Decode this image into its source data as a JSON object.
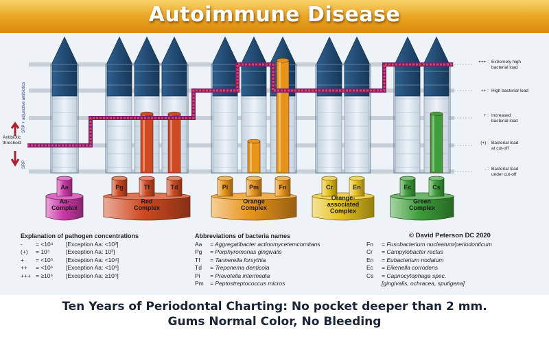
{
  "title": "Autoimmune Disease",
  "side_labels": {
    "antibiotic_threshold": [
      "Antibiotic",
      "threshold"
    ],
    "srp_adjunctive": "SRP + adjunctive antibiotics",
    "srp": "SRP"
  },
  "levels": [
    {
      "symbol": "+++ :",
      "lines": [
        "Extremely high",
        "bacterial load"
      ]
    },
    {
      "symbol": "++ :",
      "lines": [
        "High bacterial load"
      ]
    },
    {
      "symbol": "+ :",
      "lines": [
        "Increased",
        "bacterial load"
      ]
    },
    {
      "symbol": "(+) :",
      "lines": [
        "Bacterial load",
        "at cut-off"
      ]
    },
    {
      "symbol": "- :",
      "lines": [
        "Bacterial load",
        "under cut-off"
      ]
    }
  ],
  "complexes": [
    {
      "name": [
        "Aa-",
        "Complex"
      ],
      "color": "#cc3aa8",
      "bacteria": [
        "Aa"
      ]
    },
    {
      "name": [
        "Red",
        "Complex"
      ],
      "color": "#cf4a22",
      "bacteria": [
        "Pg",
        "Tf",
        "Td"
      ]
    },
    {
      "name": [
        "Orange",
        "Complex"
      ],
      "color": "#e8941a",
      "bacteria": [
        "Pi",
        "Pm",
        "Fn"
      ]
    },
    {
      "name": [
        "Orange-",
        "associated",
        "Complex"
      ],
      "color": "#e6c21c",
      "bacteria": [
        "Cr",
        "En"
      ]
    },
    {
      "name": [
        "Green",
        "Complex"
      ],
      "color": "#3e9e3a",
      "bacteria": [
        "Ec",
        "Cs"
      ]
    }
  ],
  "copyright": "© David Peterson DC 2020",
  "concentrations": {
    "header": "Explanation of pathogen concentrations",
    "rows": [
      [
        "-",
        "= <10⁴",
        "[Exception Aa: <10³]"
      ],
      [
        "(+)",
        "= 10⁴",
        "[Exception Aa: 10³]"
      ],
      [
        "+",
        "= <10⁵",
        "[Exception Aa: <10⁴]"
      ],
      [
        "++",
        "= <10⁶",
        "[Exception Aa: <10⁵]"
      ],
      [
        "+++",
        "= ≥10⁶",
        "[Exception Aa: ≥10⁵]"
      ]
    ]
  },
  "abbreviations": {
    "header": "Abbreviations of bacteria names",
    "left": [
      [
        "Aa",
        "= Aggregatibacter actinomycetemcomitans"
      ],
      [
        "Pg",
        "= Porphyromonas gingivalis"
      ],
      [
        "Tf",
        "= Tannerella forsythia"
      ],
      [
        "Td",
        "= Treponema denticola"
      ],
      [
        "Pi",
        "= Prevotella intermedia"
      ],
      [
        "Pm",
        "= Peptostreptococcus micros"
      ]
    ],
    "right": [
      [
        "Fn",
        "= Fusobacterium nucleatum/periodonticum"
      ],
      [
        "Cr",
        "= Campylobacter rectus"
      ],
      [
        "En",
        "= Eubacterium nodatum"
      ],
      [
        "Ec",
        "= Eikenella corrodens"
      ],
      [
        "Cs",
        "= Capnocytophaga spec."
      ],
      [
        "",
        "[gingivalis, ochracea, sputigena]"
      ]
    ]
  },
  "caption": {
    "line1": "Ten Years of Periodontal Charting: No pocket deeper than 2 mm.",
    "line2": "Gums Normal Color, No Bleeding"
  },
  "bars": [
    {
      "bacterium": "Aa",
      "level": "-"
    },
    {
      "bacterium": "Pg",
      "level": "-"
    },
    {
      "bacterium": "Tf",
      "level": "+"
    },
    {
      "bacterium": "Td",
      "level": "+"
    },
    {
      "bacterium": "Pi",
      "level": "-"
    },
    {
      "bacterium": "Pm",
      "level": "(+)"
    },
    {
      "bacterium": "Fn",
      "level": "+++"
    },
    {
      "bacterium": "Cr",
      "level": "-"
    },
    {
      "bacterium": "En",
      "level": "-"
    },
    {
      "bacterium": "Ec",
      "level": "-"
    },
    {
      "bacterium": "Cs",
      "level": "+"
    }
  ],
  "threshold_steps": [
    "(+)",
    "+",
    "++",
    "+++",
    "++",
    "+++"
  ]
}
